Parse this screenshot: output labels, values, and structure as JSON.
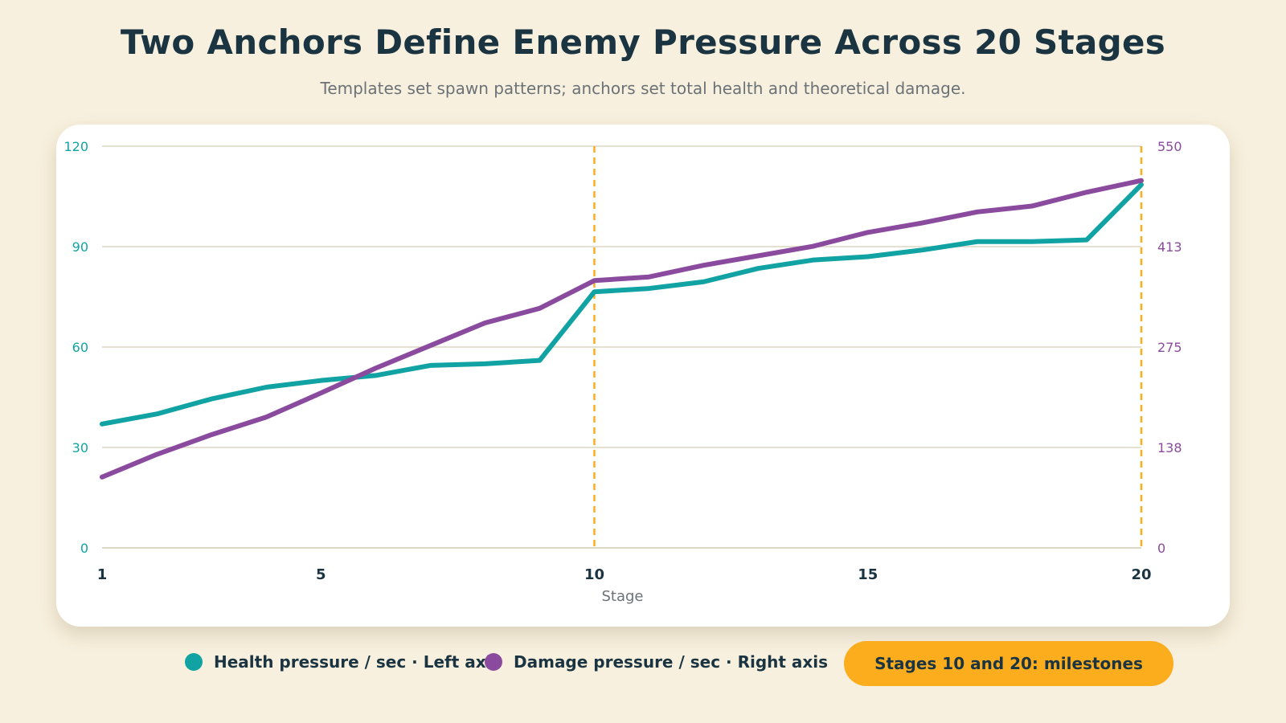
{
  "header": {
    "title": "Two Anchors Define Enemy Pressure Across 20 Stages",
    "subtitle": "Templates set spawn patterns; anchors set total health and theoretical damage."
  },
  "colors": {
    "health": "#11a3a3",
    "damage": "#8a4a9e",
    "milestone": "#fbad1e",
    "grid": "#dcd6c4",
    "axis_text": "#1b3442"
  },
  "legend": {
    "health_label": "Health pressure / sec · Left axis",
    "damage_label": "Damage pressure / sec · Right axis",
    "milestone_label": "Stages 10 and 20: milestones"
  },
  "chart_data": {
    "type": "line",
    "xlabel": "Stage",
    "x": [
      1,
      2,
      3,
      4,
      5,
      6,
      7,
      8,
      9,
      10,
      11,
      12,
      13,
      14,
      15,
      16,
      17,
      18,
      19,
      20
    ],
    "x_ticks": [
      1,
      5,
      10,
      15,
      20
    ],
    "xlim": [
      1,
      20
    ],
    "y_left": {
      "lim": [
        0,
        120
      ],
      "ticks": [
        "0",
        "30",
        "60",
        "90",
        "120"
      ]
    },
    "y_right": {
      "lim": [
        0,
        550
      ],
      "ticks": [
        "0",
        "138",
        "275",
        "413",
        "550"
      ]
    },
    "milestones": [
      10,
      20
    ],
    "grid": true,
    "legend_position": "bottom",
    "series": [
      {
        "name": "Health pressure / sec",
        "axis": "left",
        "values": [
          37,
          40,
          44.5,
          48,
          50,
          51.5,
          54.5,
          55,
          56,
          76.5,
          77.5,
          79.5,
          83.5,
          86,
          87,
          89,
          91.5,
          91.5,
          92,
          108.5
        ]
      },
      {
        "name": "Damage pressure / sec",
        "axis": "right",
        "values": [
          97,
          128,
          155,
          179,
          212,
          246,
          277,
          308,
          328,
          366,
          371,
          387,
          400,
          413,
          432,
          445,
          460,
          468,
          487,
          503
        ]
      }
    ]
  }
}
